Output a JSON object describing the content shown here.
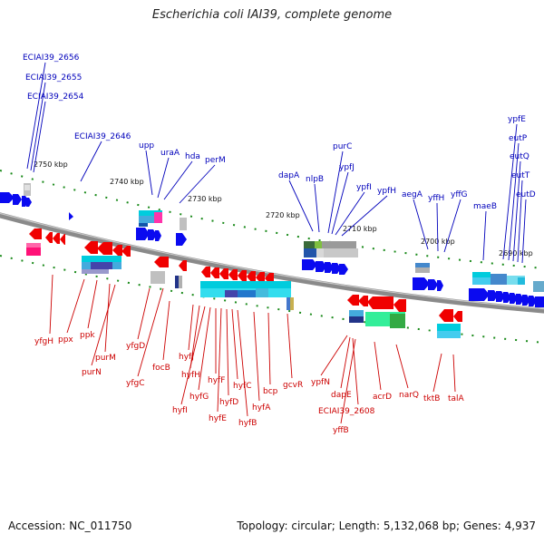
{
  "title": "Escherichia coli IAI39, complete genome",
  "footer": {
    "accession": "Accession: NC_011750",
    "info": "Topology: circular; Length: 5,132,068 bp; Genes: 4,937"
  },
  "colors": {
    "forward_label": "#0000bb",
    "reverse_label": "#cc0000",
    "forward_arrow": "#0a0af0",
    "reverse_arrow": "#f00000",
    "backbone": "#8a8a8a",
    "tick": "#1a8a1a"
  },
  "scale_labels": [
    "2750 kbp",
    "2740 kbp",
    "2730 kbp",
    "2720 kbp",
    "2710 kbp",
    "2700 kbp",
    "2690 kbp"
  ],
  "forward_genes": [
    "ECIAI39_2656",
    "ECIAI39_2655",
    "ECIAI39_2654",
    "ECIAI39_2646",
    "upp",
    "uraA",
    "hda",
    "perM",
    "dapA",
    "nlpB",
    "purC",
    "ypfJ",
    "ypfI",
    "ypfH",
    "aegA",
    "yffH",
    "yffG",
    "maeB",
    "ypfE",
    "eutP",
    "eutQ",
    "eutT",
    "eutD"
  ],
  "reverse_genes": [
    "yfgH",
    "ppx",
    "ppk",
    "purM",
    "purN",
    "yfgD",
    "yfgC",
    "focB",
    "hyfJ",
    "hyfH",
    "hyfI",
    "hyfG",
    "hyfF",
    "hyfE",
    "hyfD",
    "hyfC",
    "hyfB",
    "hyfA",
    "bcp",
    "gcvR",
    "ypfN",
    "dapE",
    "ECIAI39_2608",
    "yffB",
    "acrD",
    "narQ",
    "tktB",
    "talA"
  ]
}
